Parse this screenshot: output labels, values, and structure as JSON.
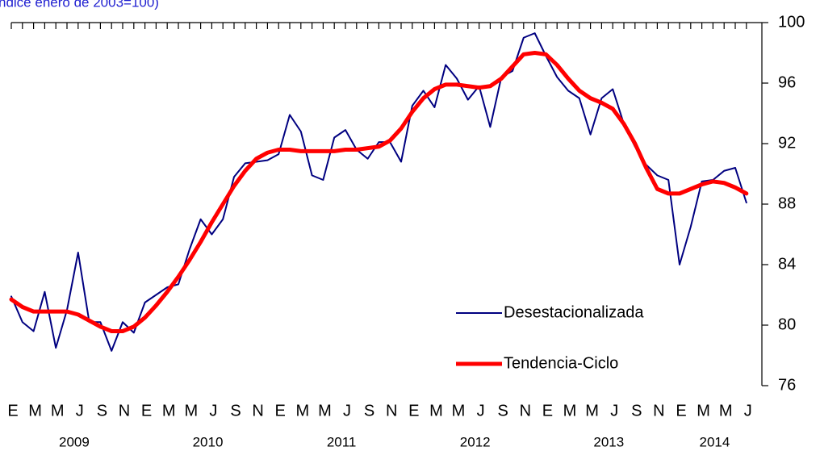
{
  "chart_data": {
    "type": "line",
    "subtitle": "ndice enero de 2003=100)",
    "categories": [
      "E",
      null,
      "M",
      null,
      "M",
      null,
      "J",
      null,
      "S",
      null,
      "N",
      null,
      "E",
      null,
      "M",
      null,
      "M",
      null,
      "J",
      null,
      "S",
      null,
      "N",
      null,
      "E",
      null,
      "M",
      null,
      "M",
      null,
      "J",
      null,
      "S",
      null,
      "N",
      null,
      "E",
      null,
      "M",
      null,
      "M",
      null,
      "J",
      null,
      "S",
      null,
      "N",
      null,
      "E",
      null,
      "M",
      null,
      "M",
      null,
      "J",
      null,
      "S",
      null,
      "N",
      null,
      "E",
      null,
      "M",
      null,
      "M",
      null,
      "J"
    ],
    "years": [
      "2009",
      "2010",
      "2011",
      "2012",
      "2013",
      "2014"
    ],
    "series": [
      {
        "name": "Desestacionalizada",
        "color": "#000080",
        "width": 2,
        "values": [
          81.9,
          80.2,
          79.6,
          82.2,
          78.5,
          81.0,
          84.8,
          80.2,
          80.2,
          78.3,
          80.2,
          79.5,
          81.5,
          82.0,
          82.5,
          82.7,
          85.0,
          87.0,
          86.0,
          87.0,
          89.8,
          90.7,
          90.8,
          90.9,
          91.3,
          93.9,
          92.8,
          89.9,
          89.6,
          92.4,
          92.9,
          91.6,
          91.0,
          92.1,
          92.1,
          90.8,
          94.5,
          95.5,
          94.4,
          97.2,
          96.3,
          94.9,
          95.8,
          93.1,
          96.4,
          96.8,
          99.0,
          99.3,
          97.8,
          96.4,
          95.5,
          95.0,
          92.6,
          95.0,
          95.6,
          93.3,
          91.8,
          90.6,
          89.9,
          89.6,
          84.0,
          86.5,
          89.5,
          89.6,
          90.2,
          90.4,
          88.1
        ]
      },
      {
        "name": "Tendencia-Ciclo",
        "color": "#ff0000",
        "width": 5,
        "values": [
          81.7,
          81.2,
          80.9,
          80.9,
          80.9,
          80.9,
          80.7,
          80.3,
          79.9,
          79.6,
          79.6,
          79.9,
          80.5,
          81.3,
          82.2,
          83.2,
          84.3,
          85.5,
          86.8,
          88.0,
          89.2,
          90.2,
          91.0,
          91.4,
          91.6,
          91.6,
          91.5,
          91.5,
          91.5,
          91.5,
          91.6,
          91.6,
          91.7,
          91.8,
          92.2,
          93.0,
          94.1,
          95.0,
          95.6,
          95.9,
          95.9,
          95.8,
          95.7,
          95.8,
          96.3,
          97.1,
          97.9,
          98.0,
          97.9,
          97.2,
          96.3,
          95.5,
          95.0,
          94.7,
          94.3,
          93.3,
          92.0,
          90.4,
          89.0,
          88.7,
          88.7,
          89.0,
          89.3,
          89.5,
          89.4,
          89.1,
          88.7
        ]
      }
    ],
    "ylim": [
      76,
      100
    ],
    "yticks": [
      76,
      80,
      84,
      88,
      92,
      96,
      100
    ],
    "y_axis_side": "right"
  }
}
